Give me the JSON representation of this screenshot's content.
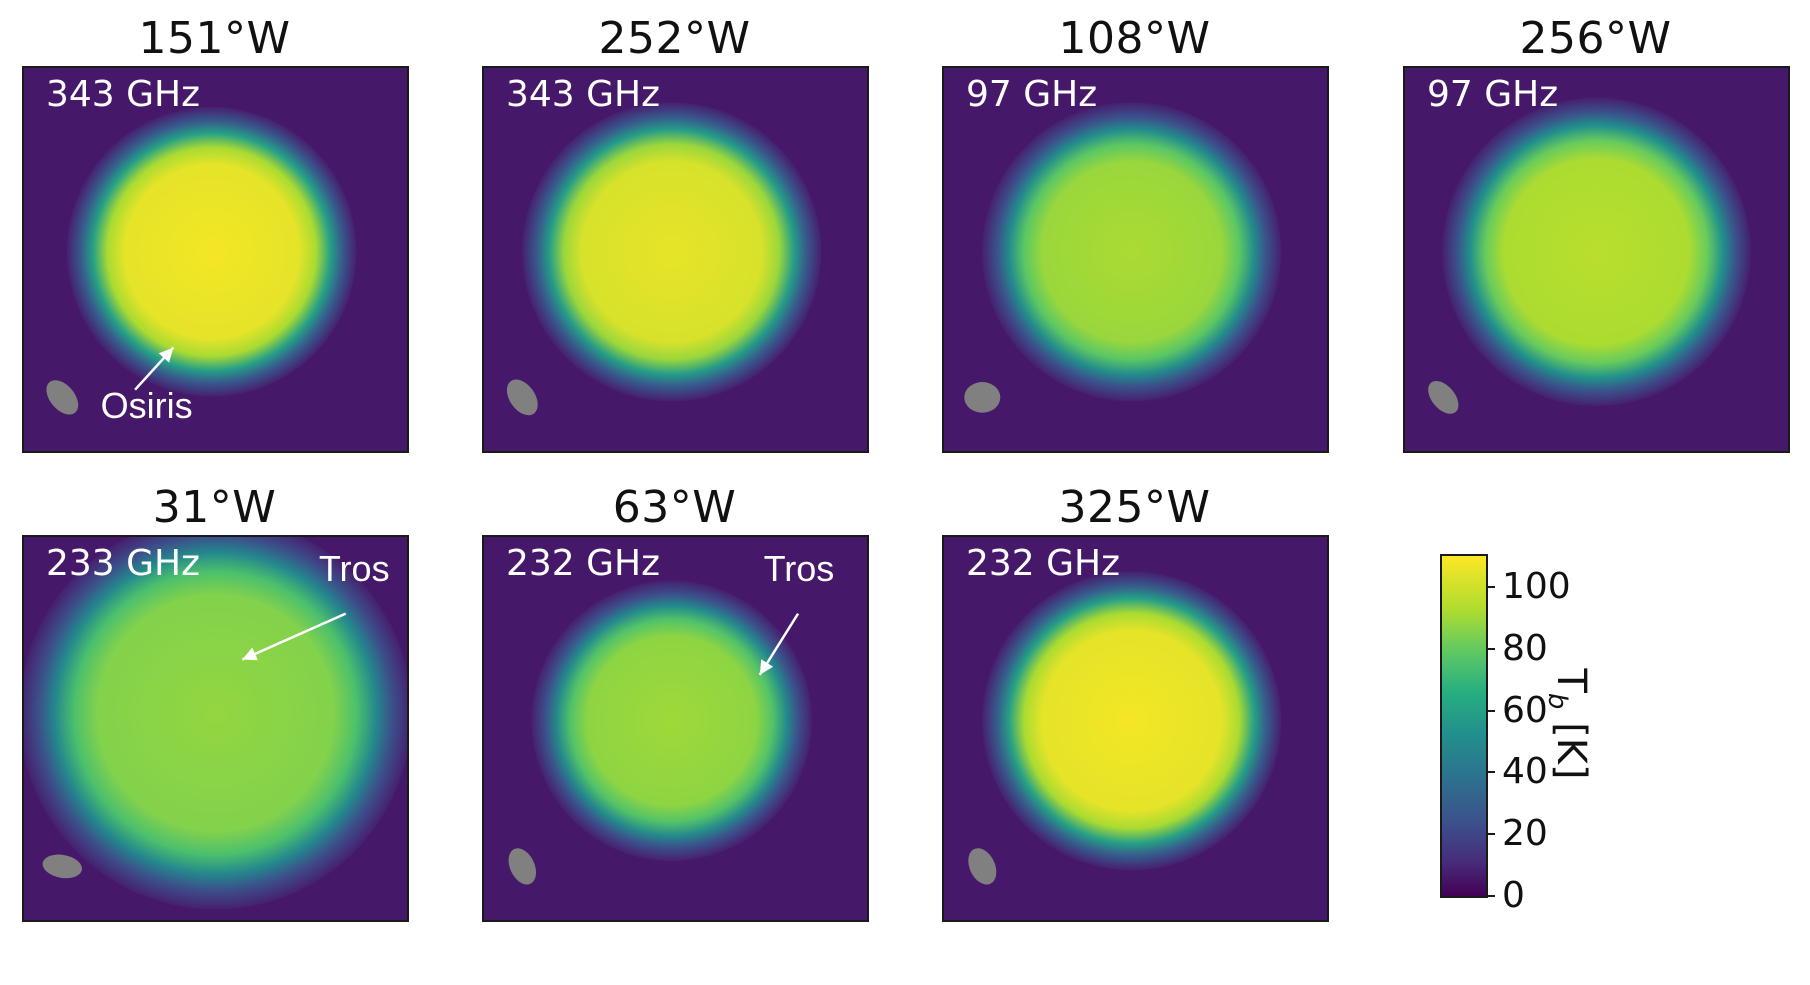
{
  "chart_data": {
    "type": "heatmap",
    "colormap": "viridis",
    "colorbar": {
      "label": "T",
      "label_subscript": "b",
      "label_unit": "[K]",
      "range": [
        0,
        110
      ],
      "ticks": [
        "0",
        "20",
        "40",
        "60",
        "80",
        "100"
      ],
      "colors": [
        "#440154",
        "#fde725"
      ]
    },
    "beam_color": "#808080",
    "panels": [
      {
        "title": "151°W",
        "frequency": "343 GHz",
        "disk_peak_K": 108,
        "annotations": [
          {
            "label": "Osiris"
          }
        ]
      },
      {
        "title": "252°W",
        "frequency": "343 GHz",
        "disk_peak_K": 105,
        "annotations": []
      },
      {
        "title": "108°W",
        "frequency": "97 GHz",
        "disk_peak_K": 92,
        "annotations": []
      },
      {
        "title": "256°W",
        "frequency": "97 GHz",
        "disk_peak_K": 95,
        "annotations": []
      },
      {
        "title": "31°W",
        "frequency": "233 GHz",
        "disk_peak_K": 88,
        "annotations": [
          {
            "label": "Tros"
          }
        ]
      },
      {
        "title": "63°W",
        "frequency": "232 GHz",
        "disk_peak_K": 90,
        "annotations": [
          {
            "label": "Tros"
          }
        ]
      },
      {
        "title": "325°W",
        "frequency": "232 GHz",
        "disk_peak_K": 108,
        "annotations": []
      }
    ]
  }
}
